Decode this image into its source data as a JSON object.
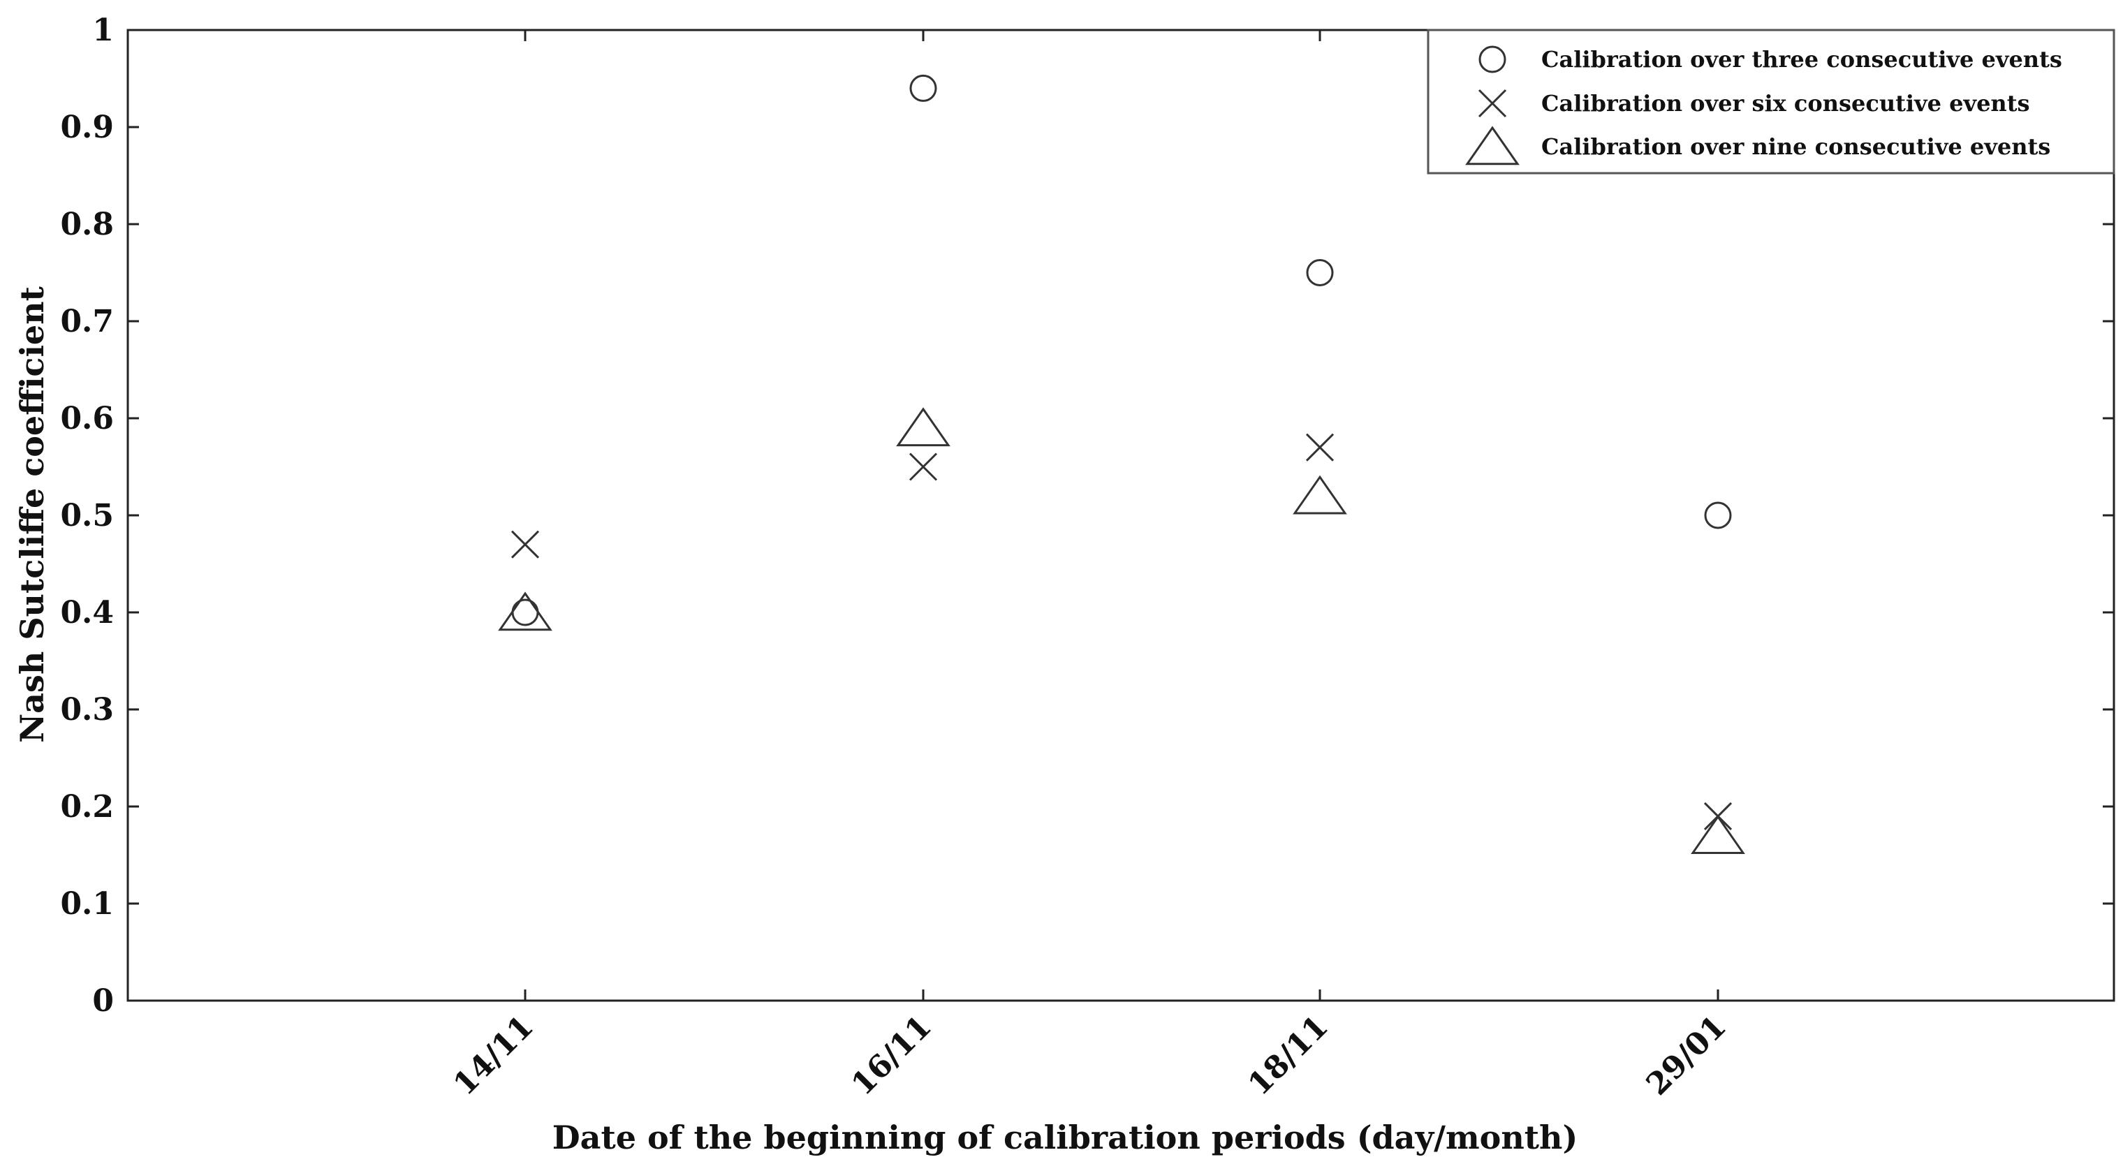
{
  "chart_data": {
    "type": "scatter",
    "categories": [
      "14/11",
      "16/11",
      "18/11",
      "29/01"
    ],
    "xlabel": "Date of the beginning of calibration periods (day/month)",
    "ylabel": "Nash Sutcliffe coefficient",
    "ylim": [
      0,
      1
    ],
    "yticks": [
      "0",
      "0.1",
      "0.2",
      "0.3",
      "0.4",
      "0.5",
      "0.6",
      "0.7",
      "0.8",
      "0.9",
      "1"
    ],
    "grid": false,
    "legend_position": "top-right",
    "series": [
      {
        "name": "Calibration over three consecutive events",
        "marker": "circle",
        "values": [
          0.4,
          0.94,
          0.75,
          0.5
        ]
      },
      {
        "name": "Calibration over six consecutive events",
        "marker": "x",
        "values": [
          0.47,
          0.55,
          0.57,
          0.19
        ]
      },
      {
        "name": "Calibration over nine consecutive events",
        "marker": "triangle",
        "values": [
          0.4,
          0.59,
          0.52,
          0.17
        ]
      }
    ]
  }
}
